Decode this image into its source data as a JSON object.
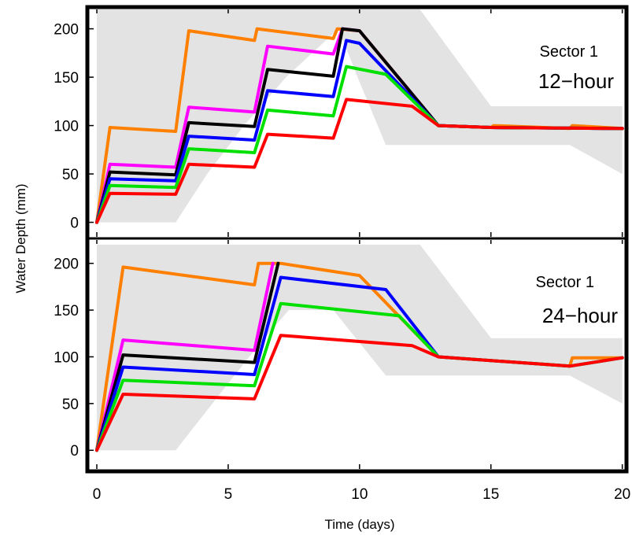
{
  "figure": {
    "xlabel": "Time (days)",
    "ylabel": "Water Depth (mm)"
  },
  "colors": {
    "band": "#e3e3e3",
    "frame": "#000000",
    "series": [
      "#ff8000",
      "#ff00ff",
      "#000000",
      "#0000ff",
      "#00e000",
      "#ff0000"
    ]
  },
  "chart_data": [
    {
      "type": "line",
      "annotation_line1": "Sector 1",
      "annotation_line2": "12−hour",
      "xlim": [
        -0.3,
        20.1
      ],
      "ylim": [
        -15,
        220
      ],
      "x_ticks": [
        "0",
        "5",
        "10",
        "15",
        "20"
      ],
      "y_ticks": [
        "0",
        "50",
        "100",
        "150",
        "200"
      ],
      "band": [
        [
          0,
          0
        ],
        [
          3,
          0
        ],
        [
          4.2,
          50
        ],
        [
          5.6,
          100
        ],
        [
          7.2,
          150
        ],
        [
          9.2,
          200
        ],
        [
          10,
          145
        ],
        [
          11,
          80
        ],
        [
          18,
          80
        ],
        [
          20,
          50
        ],
        [
          20,
          120
        ],
        [
          15,
          120
        ],
        [
          12.3,
          220
        ],
        [
          0,
          220
        ]
      ],
      "series": [
        {
          "x": [
            0,
            0.5,
            3,
            3.5,
            6,
            6.1,
            9,
            9.15,
            10,
            13,
            15,
            15.1,
            18,
            18.1,
            20
          ],
          "y": [
            0,
            98,
            94,
            198,
            188,
            200,
            190,
            200,
            198,
            100,
            98,
            100,
            97,
            100,
            97
          ]
        },
        {
          "x": [
            0,
            0.5,
            3,
            3.5,
            6,
            6.5,
            9,
            9.35,
            10,
            13,
            15,
            20
          ],
          "y": [
            0,
            60,
            57,
            119,
            114,
            182,
            174,
            200,
            198,
            100,
            98,
            97
          ]
        },
        {
          "x": [
            0,
            0.5,
            3,
            3.5,
            6,
            6.5,
            9,
            9.35,
            10,
            13,
            15,
            20
          ],
          "y": [
            0,
            52,
            49,
            103,
            99,
            158,
            151,
            200,
            198,
            100,
            98,
            97
          ]
        },
        {
          "x": [
            0,
            0.5,
            3,
            3.5,
            6,
            6.5,
            9,
            9.5,
            10,
            13,
            15,
            20
          ],
          "y": [
            0,
            45,
            43,
            89,
            85,
            136,
            130,
            188,
            185,
            100,
            98,
            97
          ]
        },
        {
          "x": [
            0,
            0.5,
            3,
            3.5,
            6,
            6.5,
            9,
            9.5,
            11,
            13,
            15,
            20
          ],
          "y": [
            0,
            38,
            36,
            76,
            72,
            116,
            110,
            161,
            153,
            100,
            98,
            97
          ]
        },
        {
          "x": [
            0,
            0.5,
            3,
            3.5,
            6,
            6.5,
            9,
            9.5,
            12,
            13,
            15,
            20
          ],
          "y": [
            0,
            30,
            29,
            60,
            57,
            91,
            87,
            127,
            120,
            100,
            98,
            97
          ]
        }
      ]
    },
    {
      "type": "line",
      "annotation_line1": "Sector 1",
      "annotation_line2": "24−hour",
      "xlim": [
        -0.3,
        20.1
      ],
      "ylim": [
        -20,
        225
      ],
      "x_ticks": [
        "0",
        "5",
        "10",
        "15",
        "20"
      ],
      "y_ticks": [
        "0",
        "50",
        "100",
        "150",
        "200"
      ],
      "band": [
        [
          0,
          0
        ],
        [
          3,
          0
        ],
        [
          4.4,
          50
        ],
        [
          5.8,
          100
        ],
        [
          7.3,
          150
        ],
        [
          9,
          150
        ],
        [
          11,
          80
        ],
        [
          18,
          80
        ],
        [
          20,
          50
        ],
        [
          20,
          120
        ],
        [
          15,
          120
        ],
        [
          12.3,
          220
        ],
        [
          0,
          220
        ]
      ],
      "series": [
        {
          "x": [
            0,
            1,
            6,
            6.15,
            7,
            10,
            13,
            18,
            18.1,
            20
          ],
          "y": [
            0,
            196,
            177,
            200,
            200,
            187,
            100,
            90,
            99,
            99
          ]
        },
        {
          "x": [
            0,
            1,
            6,
            6.7
          ],
          "y": [
            0,
            118,
            107,
            200
          ]
        },
        {
          "x": [
            0,
            1,
            6,
            6.9
          ],
          "y": [
            0,
            102,
            94,
            200
          ]
        },
        {
          "x": [
            0,
            1,
            6,
            7,
            11,
            13,
            18,
            20
          ],
          "y": [
            0,
            89,
            81,
            185,
            172,
            100,
            90,
            99
          ]
        },
        {
          "x": [
            0,
            1,
            6,
            7,
            11.5,
            13,
            18,
            20
          ],
          "y": [
            0,
            75,
            69,
            157,
            144,
            100,
            90,
            99
          ]
        },
        {
          "x": [
            0,
            1,
            6,
            7,
            12,
            13,
            18,
            20
          ],
          "y": [
            0,
            60,
            55,
            123,
            112,
            100,
            90,
            99
          ]
        }
      ]
    }
  ]
}
